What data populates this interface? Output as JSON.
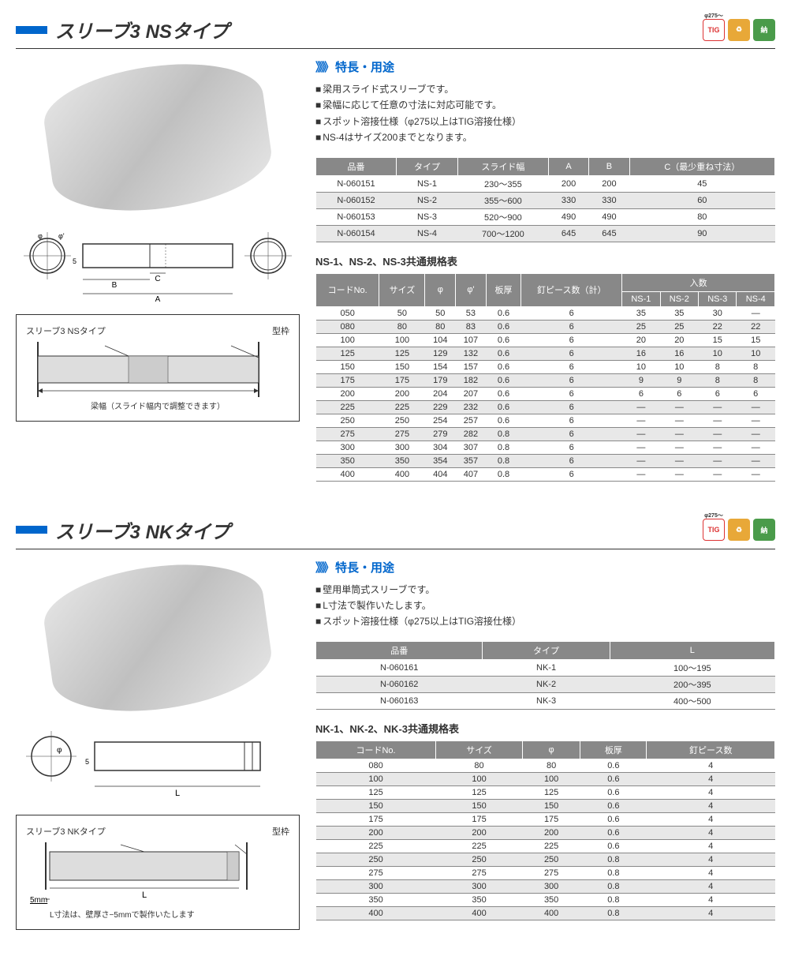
{
  "sections": [
    {
      "title": "スリーブ3 NSタイプ",
      "badges": [
        "TIG",
        "♻",
        "納"
      ],
      "features_heading": "特長・用途",
      "features": [
        "梁用スライド式スリーブです。",
        "梁幅に応じて任意の寸法に対応可能です。",
        "スポット溶接仕様（φ275以上はTIG溶接仕様）",
        "NS-4はサイズ200までとなります。"
      ],
      "diagram": {
        "product_label": "スリーブ3 NSタイプ",
        "frame_label": "型枠",
        "note": "梁幅（スライド幅内で調整できます）",
        "dims": [
          "A",
          "B",
          "C",
          "φ",
          "φ'",
          "5"
        ]
      },
      "table1": {
        "headers": [
          "品番",
          "タイプ",
          "スライド幅",
          "A",
          "B",
          "C（最少重ね寸法）"
        ],
        "rows": [
          [
            "N-060151",
            "NS-1",
            "230〜355",
            "200",
            "200",
            "45"
          ],
          [
            "N-060152",
            "NS-2",
            "355〜600",
            "330",
            "330",
            "60"
          ],
          [
            "N-060153",
            "NS-3",
            "520〜900",
            "490",
            "490",
            "80"
          ],
          [
            "N-060154",
            "NS-4",
            "700〜1200",
            "645",
            "645",
            "90"
          ]
        ]
      },
      "table2": {
        "title": "NS-1、NS-2、NS-3共通規格表",
        "headers_top": [
          "コードNo.",
          "サイズ",
          "φ",
          "φ'",
          "板厚",
          "釘ピース数（計）",
          "入数"
        ],
        "headers_sub": [
          "NS-1",
          "NS-2",
          "NS-3",
          "NS-4"
        ],
        "rows": [
          [
            "050",
            "50",
            "50",
            "53",
            "0.6",
            "6",
            "35",
            "35",
            "30",
            "—"
          ],
          [
            "080",
            "80",
            "80",
            "83",
            "0.6",
            "6",
            "25",
            "25",
            "22",
            "22"
          ],
          [
            "100",
            "100",
            "104",
            "107",
            "0.6",
            "6",
            "20",
            "20",
            "15",
            "15"
          ],
          [
            "125",
            "125",
            "129",
            "132",
            "0.6",
            "6",
            "16",
            "16",
            "10",
            "10"
          ],
          [
            "150",
            "150",
            "154",
            "157",
            "0.6",
            "6",
            "10",
            "10",
            "8",
            "8"
          ],
          [
            "175",
            "175",
            "179",
            "182",
            "0.6",
            "6",
            "9",
            "9",
            "8",
            "8"
          ],
          [
            "200",
            "200",
            "204",
            "207",
            "0.6",
            "6",
            "6",
            "6",
            "6",
            "6"
          ],
          [
            "225",
            "225",
            "229",
            "232",
            "0.6",
            "6",
            "—",
            "—",
            "—",
            "—"
          ],
          [
            "250",
            "250",
            "254",
            "257",
            "0.6",
            "6",
            "—",
            "—",
            "—",
            "—"
          ],
          [
            "275",
            "275",
            "279",
            "282",
            "0.8",
            "6",
            "—",
            "—",
            "—",
            "—"
          ],
          [
            "300",
            "300",
            "304",
            "307",
            "0.8",
            "6",
            "—",
            "—",
            "—",
            "—"
          ],
          [
            "350",
            "350",
            "354",
            "357",
            "0.8",
            "6",
            "—",
            "—",
            "—",
            "—"
          ],
          [
            "400",
            "400",
            "404",
            "407",
            "0.8",
            "6",
            "—",
            "—",
            "—",
            "—"
          ]
        ]
      }
    },
    {
      "title": "スリーブ3 NKタイプ",
      "badges": [
        "TIG",
        "♻",
        "納"
      ],
      "features_heading": "特長・用途",
      "features": [
        "壁用単筒式スリーブです。",
        "L寸法で製作いたします。",
        "スポット溶接仕様（φ275以上はTIG溶接仕様）"
      ],
      "diagram": {
        "product_label": "スリーブ3 NKタイプ",
        "frame_label": "型枠",
        "note": "L寸法は、壁厚さ−5mmで製作いたします",
        "dims": [
          "L",
          "φ",
          "5",
          "5mm"
        ]
      },
      "table1": {
        "headers": [
          "品番",
          "タイプ",
          "L"
        ],
        "rows": [
          [
            "N-060161",
            "NK-1",
            "100〜195"
          ],
          [
            "N-060162",
            "NK-2",
            "200〜395"
          ],
          [
            "N-060163",
            "NK-3",
            "400〜500"
          ]
        ]
      },
      "table2": {
        "title": "NK-1、NK-2、NK-3共通規格表",
        "headers_top": [
          "コードNo.",
          "サイズ",
          "φ",
          "板厚",
          "釘ピース数"
        ],
        "rows": [
          [
            "080",
            "80",
            "80",
            "0.6",
            "4"
          ],
          [
            "100",
            "100",
            "100",
            "0.6",
            "4"
          ],
          [
            "125",
            "125",
            "125",
            "0.6",
            "4"
          ],
          [
            "150",
            "150",
            "150",
            "0.6",
            "4"
          ],
          [
            "175",
            "175",
            "175",
            "0.6",
            "4"
          ],
          [
            "200",
            "200",
            "200",
            "0.6",
            "4"
          ],
          [
            "225",
            "225",
            "225",
            "0.6",
            "4"
          ],
          [
            "250",
            "250",
            "250",
            "0.8",
            "4"
          ],
          [
            "275",
            "275",
            "275",
            "0.8",
            "4"
          ],
          [
            "300",
            "300",
            "300",
            "0.8",
            "4"
          ],
          [
            "350",
            "350",
            "350",
            "0.8",
            "4"
          ],
          [
            "400",
            "400",
            "400",
            "0.8",
            "4"
          ]
        ]
      }
    }
  ],
  "colors": {
    "accent": "#0066cc",
    "header_bg": "#888888",
    "alt_row": "#e8e8e8",
    "badge_tig": "#d33333",
    "badge_eco": "#e8a838",
    "badge_nou": "#4a9b4a"
  }
}
